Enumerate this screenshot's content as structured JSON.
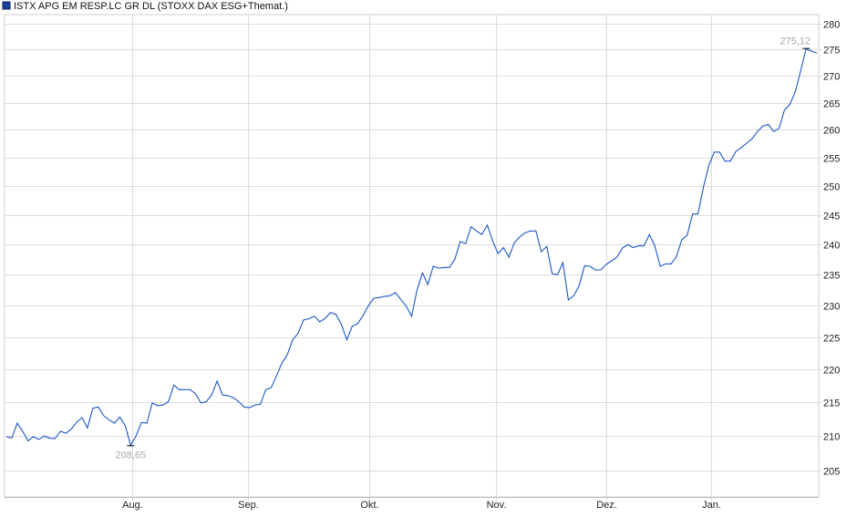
{
  "chart_data": {
    "type": "line",
    "title": "",
    "legend": {
      "label": "ISTX APG EM RESP.LC GR DL (STOXX DAX ESG+Themat.)",
      "placement": "top-left"
    },
    "xlabel": "",
    "ylabel": "",
    "y_scale": "log",
    "ylim": [
      201,
      281
    ],
    "y_ticks": [
      "205",
      "210",
      "215",
      "220",
      "225",
      "230",
      "235",
      "240",
      "245",
      "250",
      "255",
      "260",
      "265",
      "270",
      "275",
      "280"
    ],
    "x_ticks": [
      "Aug.",
      "Sep.",
      "Okt.",
      "Nov.",
      "Dez.",
      "Jan."
    ],
    "grid": true,
    "series_color": "#1a56c4",
    "series": [
      {
        "name": "ISTX APG EM RESP.LC GR DL (STOXX DAX ESG+Themat.)",
        "values": [
          209.9,
          209.7,
          211.9,
          210.7,
          209.3,
          209.9,
          209.5,
          210.0,
          209.7,
          209.6,
          210.7,
          210.4,
          211.0,
          212.0,
          212.7,
          211.2,
          214.1,
          214.3,
          213.0,
          212.4,
          211.9,
          212.8,
          211.5,
          208.65,
          210.0,
          212.0,
          211.9,
          214.9,
          214.5,
          214.6,
          215.1,
          217.6,
          216.9,
          216.9,
          216.9,
          216.3,
          214.9,
          215.1,
          216.1,
          218.2,
          216.1,
          216.0,
          215.7,
          215.1,
          214.3,
          214.2,
          214.6,
          214.7,
          216.9,
          217.2,
          219.0,
          221.0,
          222.3,
          224.6,
          225.6,
          227.7,
          227.9,
          228.3,
          227.4,
          228.0,
          228.9,
          228.6,
          227.0,
          224.6,
          226.7,
          227.1,
          228.4,
          230.0,
          231.2,
          231.3,
          231.5,
          231.6,
          232.1,
          231.0,
          229.9,
          228.3,
          232.5,
          235.3,
          233.4,
          236.4,
          236.1,
          236.2,
          236.2,
          237.6,
          240.5,
          240.2,
          243.0,
          242.3,
          241.7,
          243.3,
          240.6,
          238.5,
          239.5,
          237.9,
          240.3,
          241.3,
          242.0,
          242.3,
          242.3,
          238.8,
          239.7,
          235.2,
          235.0,
          237.0,
          230.9,
          231.6,
          233.2,
          236.5,
          236.4,
          235.8,
          235.8,
          236.7,
          237.3,
          237.9,
          239.4,
          240.0,
          239.5,
          239.8,
          239.8,
          241.7,
          239.8,
          236.4,
          236.8,
          236.8,
          238.0,
          240.8,
          241.6,
          245.2,
          245.2,
          249.8,
          253.6,
          256.0,
          256.0,
          254.4,
          254.4,
          256.1,
          256.8,
          257.6,
          258.4,
          259.7,
          260.7,
          261.0,
          259.7,
          260.3,
          263.6,
          264.7,
          267.0,
          270.9,
          275.12,
          274.7,
          274.3
        ]
      }
    ],
    "annotations": {
      "min_label": "208,65",
      "max_label": "275,12"
    }
  }
}
